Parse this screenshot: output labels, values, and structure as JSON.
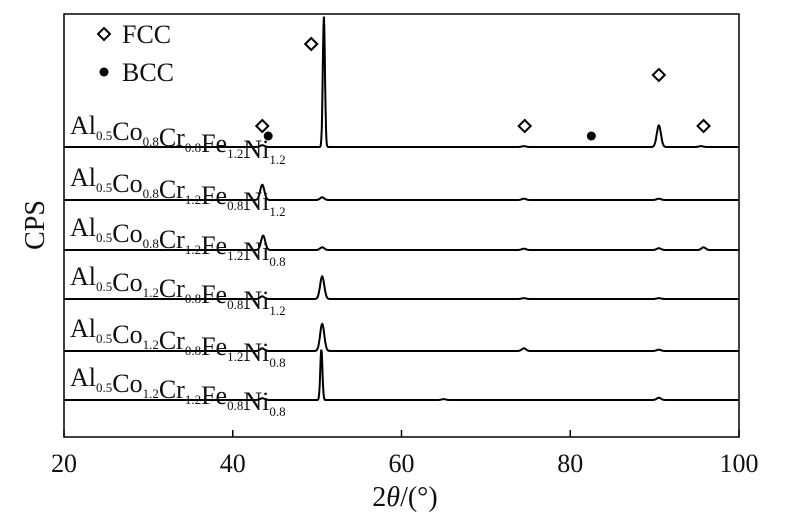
{
  "chart_data": {
    "type": "line",
    "xlabel_parts": {
      "prefix": "2",
      "theta": "θ",
      "suffix": "/(°)"
    },
    "ylabel": "CPS",
    "xlim": [
      20,
      100
    ],
    "x_ticks": [
      20,
      40,
      60,
      80,
      100
    ],
    "grid": false,
    "legend_position": "top-left",
    "legend": [
      {
        "name": "FCC",
        "marker": "open-diamond"
      },
      {
        "name": "BCC",
        "marker": "filled-circle"
      }
    ],
    "series": [
      {
        "label_parts": [
          [
            "Al",
            "0.5"
          ],
          [
            "Co",
            "0.8"
          ],
          [
            "Cr",
            "0.8"
          ],
          [
            "Fe",
            "1.2"
          ],
          [
            "Ni",
            "1.2"
          ]
        ],
        "baseline": 0,
        "peaks": [
          [
            43.5,
            0.2
          ],
          [
            50.8,
            14.5
          ],
          [
            74.5,
            0.1
          ],
          [
            90.5,
            2.4
          ],
          [
            95.5,
            0.1
          ]
        ]
      },
      {
        "label_parts": [
          [
            "Al",
            "0.5"
          ],
          [
            "Co",
            "0.8"
          ],
          [
            "Cr",
            "1.2"
          ],
          [
            "Fe",
            "0.8"
          ],
          [
            "Ni",
            "1.2"
          ]
        ],
        "baseline": 0,
        "peaks": [
          [
            43.5,
            1.7
          ],
          [
            50.6,
            0.3
          ],
          [
            74.5,
            0.15
          ],
          [
            90.5,
            0.15
          ]
        ]
      },
      {
        "label_parts": [
          [
            "Al",
            "0.5"
          ],
          [
            "Co",
            "0.8"
          ],
          [
            "Cr",
            "1.2"
          ],
          [
            "Fe",
            "1.2"
          ],
          [
            "Ni",
            "0.8"
          ]
        ],
        "baseline": 0,
        "peaks": [
          [
            43.6,
            1.6
          ],
          [
            50.6,
            0.3
          ],
          [
            74.5,
            0.15
          ],
          [
            90.5,
            0.2
          ],
          [
            95.8,
            0.3
          ]
        ]
      },
      {
        "label_parts": [
          [
            "Al",
            "0.5"
          ],
          [
            "Co",
            "1.2"
          ],
          [
            "Cr",
            "0.8"
          ],
          [
            "Fe",
            "0.8"
          ],
          [
            "Ni",
            "1.2"
          ]
        ],
        "baseline": 0,
        "peaks": [
          [
            43.5,
            0.3
          ],
          [
            50.6,
            2.5
          ],
          [
            74.5,
            0.1
          ],
          [
            90.5,
            0.1
          ]
        ]
      },
      {
        "label_parts": [
          [
            "Al",
            "0.5"
          ],
          [
            "Co",
            "1.2"
          ],
          [
            "Cr",
            "0.8"
          ],
          [
            "Fe",
            "1.2"
          ],
          [
            "Ni",
            "0.8"
          ]
        ],
        "baseline": 0,
        "peaks": [
          [
            43.5,
            0.3
          ],
          [
            50.6,
            3.0
          ],
          [
            74.5,
            0.3
          ],
          [
            90.5,
            0.15
          ]
        ]
      },
      {
        "label_parts": [
          [
            "Al",
            "0.5"
          ],
          [
            "Co",
            "1.2"
          ],
          [
            "Cr",
            "1.2"
          ],
          [
            "Fe",
            "0.8"
          ],
          [
            "Ni",
            "0.8"
          ]
        ],
        "baseline": 0,
        "peaks": [
          [
            43.5,
            0.2
          ],
          [
            50.5,
            5.6
          ],
          [
            65,
            0.1
          ],
          [
            90.5,
            0.25
          ]
        ]
      }
    ],
    "phase_markers": [
      {
        "phase": "FCC",
        "x": 43.5,
        "series_index": 0
      },
      {
        "phase": "BCC",
        "x": 44.2,
        "series_index": 0
      },
      {
        "phase": "FCC",
        "x": 49.3,
        "series_index": 0
      },
      {
        "phase": "FCC",
        "x": 74.6,
        "series_index": 0
      },
      {
        "phase": "BCC",
        "x": 82.5,
        "series_index": 0
      },
      {
        "phase": "FCC",
        "x": 90.5,
        "series_index": 0
      },
      {
        "phase": "FCC",
        "x": 95.8,
        "series_index": 0
      }
    ]
  }
}
